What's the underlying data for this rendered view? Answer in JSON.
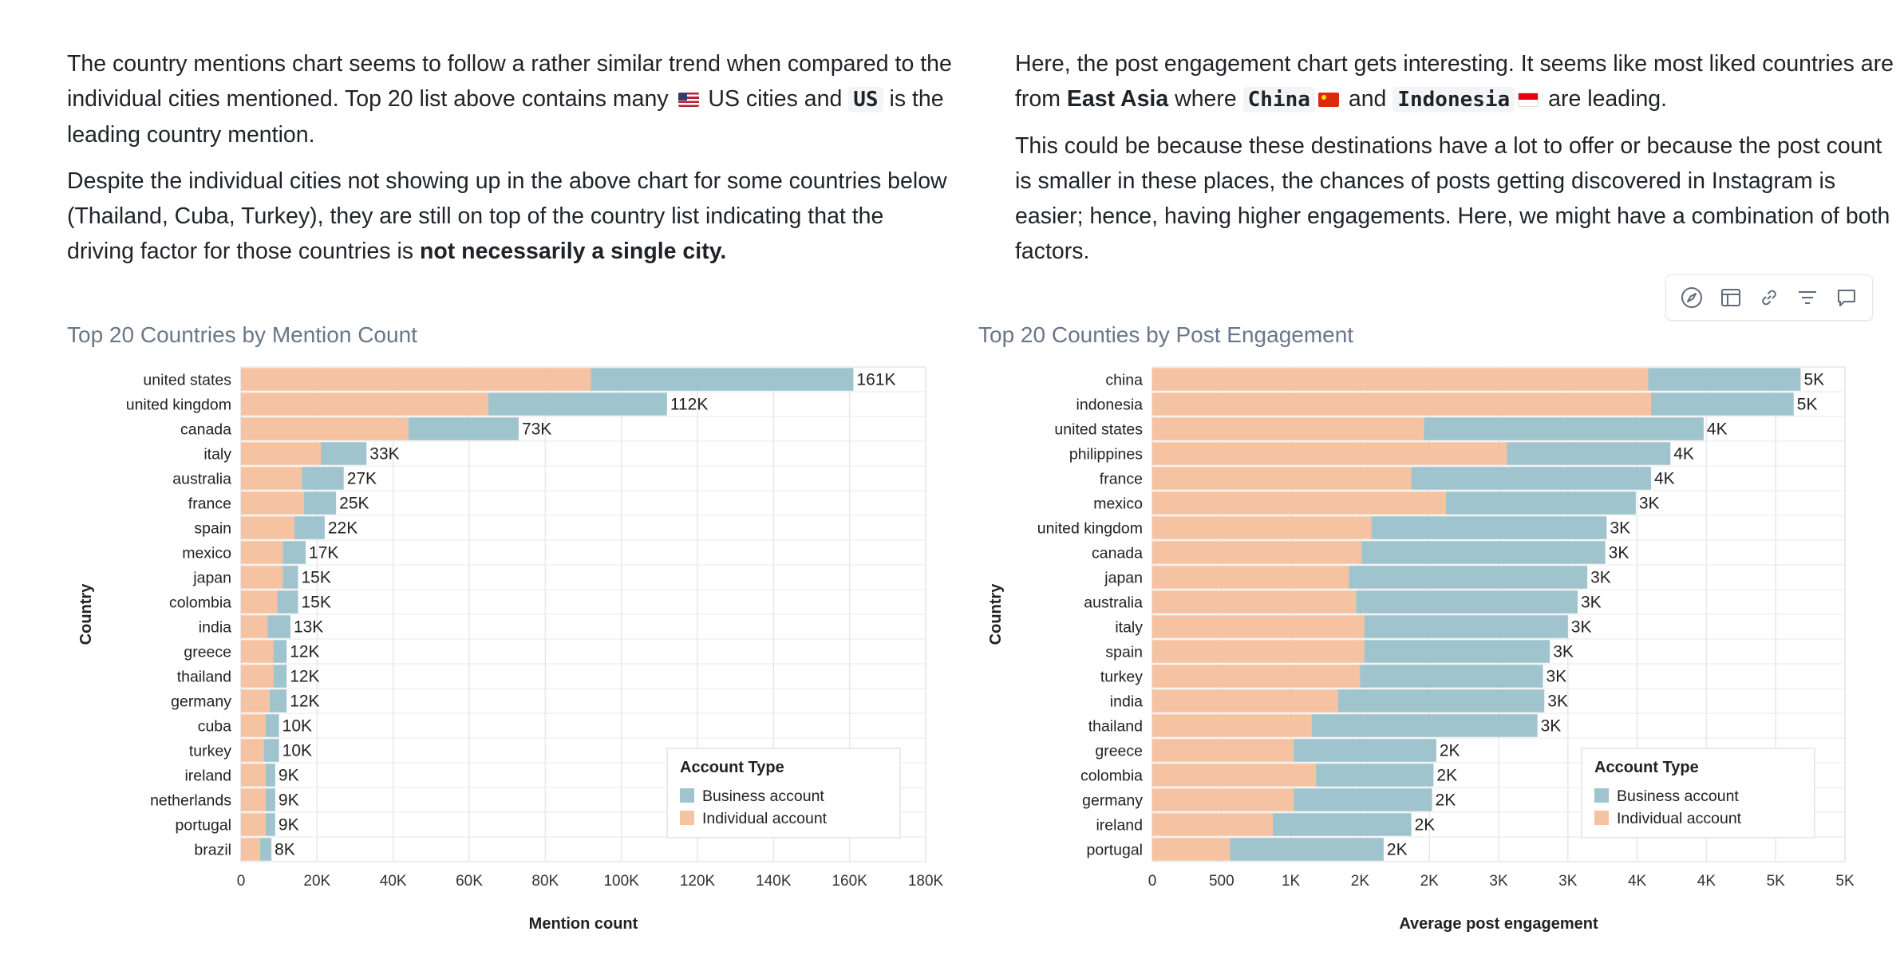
{
  "paragraphs": {
    "left": {
      "p1_a": "The country mentions chart seems to follow a rather similar trend when compared to the individual cities mentioned. Top 20 list above contains many ",
      "p1_b": " US cities and ",
      "p1_code": "US",
      "p1_c": " is the leading country mention.",
      "p2_a": "Despite the individual cities not showing up in the above chart for some countries below (Thailand, Cuba, Turkey), they are still on top of the country list indicating that the driving factor for those countries is ",
      "p2_bold": "not necessarily a single city."
    },
    "right": {
      "p1_a": "Here, the post engagement chart gets interesting. It seems like most liked countries are from ",
      "p1_bold": "East Asia",
      "p1_b": " where ",
      "p1_code1": "China",
      "p1_c": " and ",
      "p1_code2": "Indonesia",
      "p1_d": " are leading.",
      "p2": "This could be because these destinations have a lot to offer or  because the post count is smaller in these places, the chances of posts getting discovered in Instagram is easier; hence, having higher engagements. Here, we might have a combination of both factors."
    }
  },
  "toolbar": {
    "icons": [
      "compass-icon",
      "table-icon",
      "link-icon",
      "filter-icon",
      "comment-icon"
    ]
  },
  "colors": {
    "business": "#a0c4cd",
    "individual": "#f5c3a2",
    "grid": "#e8e8e8",
    "title": "#6b7688"
  },
  "chart_data": [
    {
      "type": "bar",
      "orientation": "horizontal",
      "stacked": true,
      "title": "Top 20 Countries by Mention Count",
      "xlabel": "Mention count",
      "ylabel": "Country",
      "xlim": [
        0,
        180000
      ],
      "xticks": [
        0,
        20000,
        40000,
        60000,
        80000,
        100000,
        120000,
        140000,
        160000,
        180000
      ],
      "xtick_labels": [
        "0",
        "20K",
        "40K",
        "60K",
        "80K",
        "100K",
        "120K",
        "140K",
        "160K",
        "180K"
      ],
      "grid": true,
      "legend": {
        "title": "Account Type",
        "position": "bottom-right",
        "entries": [
          "Business account",
          "Individual account"
        ]
      },
      "categories": [
        "united states",
        "united kingdom",
        "canada",
        "italy",
        "australia",
        "france",
        "spain",
        "mexico",
        "japan",
        "colombia",
        "india",
        "greece",
        "thailand",
        "germany",
        "cuba",
        "turkey",
        "ireland",
        "netherlands",
        "portugal",
        "brazil"
      ],
      "series": [
        {
          "name": "Individual account",
          "values": [
            92000,
            65000,
            44000,
            21000,
            16000,
            16500,
            14000,
            11000,
            11000,
            9500,
            7000,
            8500,
            8500,
            7500,
            6500,
            6000,
            6500,
            6500,
            6500,
            5000
          ]
        },
        {
          "name": "Business account",
          "values": [
            69000,
            47000,
            29000,
            12000,
            11000,
            8500,
            8000,
            6000,
            4000,
            5500,
            6000,
            3500,
            3500,
            4500,
            3500,
            4000,
            2500,
            2500,
            2500,
            3000
          ]
        }
      ],
      "totals": [
        161000,
        112000,
        73000,
        33000,
        27000,
        25000,
        22000,
        17000,
        15000,
        15000,
        13000,
        12000,
        12000,
        12000,
        10000,
        10000,
        9000,
        9000,
        9000,
        8000
      ],
      "total_labels": [
        "161K",
        "112K",
        "73K",
        "33K",
        "27K",
        "25K",
        "22K",
        "17K",
        "15K",
        "15K",
        "13K",
        "12K",
        "12K",
        "12K",
        "10K",
        "10K",
        "9K",
        "9K",
        "9K",
        "8K"
      ]
    },
    {
      "type": "bar",
      "orientation": "horizontal",
      "stacked": true,
      "title": "Top 20 Counties by Post Engagement",
      "xlabel": "Average post engagement",
      "ylabel": "Country",
      "xlim": [
        0,
        5000
      ],
      "xticks": [
        0,
        500,
        1000,
        1500,
        2000,
        2500,
        3000,
        3500,
        4000,
        4500,
        5000
      ],
      "xtick_labels": [
        "0",
        "500",
        "1K",
        "2K",
        "2K",
        "3K",
        "3K",
        "4K",
        "4K",
        "5K",
        "5K"
      ],
      "grid": true,
      "legend": {
        "title": "Account Type",
        "position": "bottom-right",
        "entries": [
          "Business account",
          "Individual account"
        ]
      },
      "categories": [
        "china",
        "indonesia",
        "united states",
        "philippines",
        "france",
        "mexico",
        "united kingdom",
        "canada",
        "japan",
        "australia",
        "italy",
        "spain",
        "turkey",
        "india",
        "thailand",
        "greece",
        "colombia",
        "germany",
        "ireland",
        "portugal"
      ],
      "series": [
        {
          "name": "Individual account",
          "values": [
            3580,
            3600,
            1960,
            2560,
            1870,
            2120,
            1580,
            1510,
            1420,
            1470,
            1530,
            1530,
            1500,
            1340,
            1150,
            1020,
            1180,
            1020,
            870,
            560
          ]
        },
        {
          "name": "Business account",
          "values": [
            1100,
            1030,
            2020,
            1180,
            1730,
            1370,
            1700,
            1760,
            1720,
            1600,
            1470,
            1340,
            1320,
            1490,
            1630,
            1030,
            850,
            1000,
            1000,
            1110
          ]
        }
      ],
      "totals": [
        4680,
        4630,
        3980,
        3740,
        3600,
        3490,
        3280,
        3270,
        3140,
        3070,
        3000,
        2870,
        2820,
        2830,
        2780,
        2050,
        2030,
        2020,
        1870,
        1670
      ],
      "total_labels": [
        "5K",
        "5K",
        "4K",
        "4K",
        "4K",
        "3K",
        "3K",
        "3K",
        "3K",
        "3K",
        "3K",
        "3K",
        "3K",
        "3K",
        "3K",
        "2K",
        "2K",
        "2K",
        "2K",
        "2K"
      ]
    }
  ]
}
